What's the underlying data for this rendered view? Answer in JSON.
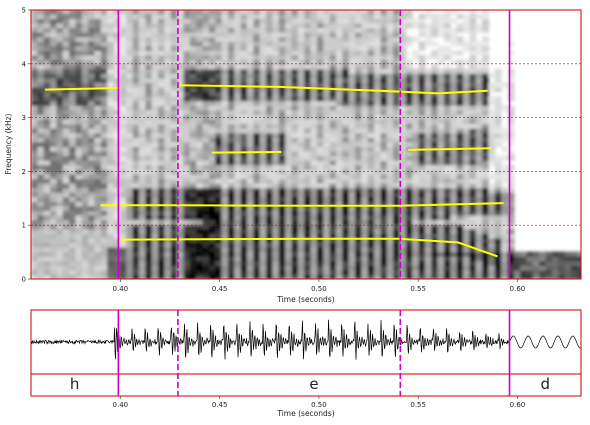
{
  "chart_data": {
    "type": "spectrogram",
    "x_range": [
      0.355,
      0.632
    ],
    "spectrogram": {
      "ylabel": "Frequency (kHz)",
      "xlabel": "Time (seconds)",
      "ylim": [
        0,
        5
      ],
      "y_ticks": [
        0,
        1,
        2,
        3,
        4,
        5
      ],
      "x_ticks": [
        0.4,
        0.45,
        0.5,
        0.55,
        0.6
      ],
      "gridlines_khz": [
        1,
        2,
        3,
        4,
        5
      ],
      "formant_tracks": [
        {
          "name": "h-F4",
          "points": [
            [
              0.362,
              3.52
            ],
            [
              0.4,
              3.55
            ]
          ]
        },
        {
          "name": "e-F4",
          "points": [
            [
              0.43,
              3.6
            ],
            [
              0.48,
              3.57
            ],
            [
              0.53,
              3.5
            ],
            [
              0.56,
              3.45
            ],
            [
              0.585,
              3.5
            ]
          ]
        },
        {
          "name": "e-F3-early",
          "points": [
            [
              0.446,
              2.35
            ],
            [
              0.481,
              2.36
            ]
          ]
        },
        {
          "name": "e-F3-late",
          "points": [
            [
              0.545,
              2.4
            ],
            [
              0.587,
              2.43
            ]
          ]
        },
        {
          "name": "F2",
          "points": [
            [
              0.39,
              1.37
            ],
            [
              0.43,
              1.37
            ],
            [
              0.5,
              1.36
            ],
            [
              0.54,
              1.36
            ],
            [
              0.56,
              1.38
            ],
            [
              0.593,
              1.41
            ]
          ]
        },
        {
          "name": "F1",
          "points": [
            [
              0.4,
              0.73
            ],
            [
              0.44,
              0.74
            ],
            [
              0.5,
              0.75
            ],
            [
              0.54,
              0.75
            ],
            [
              0.57,
              0.68
            ],
            [
              0.59,
              0.42
            ]
          ]
        }
      ]
    },
    "waveform": {
      "xlabel": "Time (seconds)",
      "x_ticks": [
        0.4,
        0.45,
        0.5,
        0.55,
        0.6
      ]
    },
    "boundaries": [
      {
        "time": 0.399,
        "style": "solid"
      },
      {
        "time": 0.429,
        "style": "dashed"
      },
      {
        "time": 0.541,
        "style": "dashed"
      },
      {
        "time": 0.596,
        "style": "solid"
      }
    ],
    "segments": [
      {
        "label": "h",
        "start": 0.355,
        "end": 0.399
      },
      {
        "label": "e",
        "start": 0.399,
        "end": 0.596
      },
      {
        "label": "d",
        "start": 0.596,
        "end": 0.632
      }
    ],
    "colors": {
      "frame": "#cc0000",
      "gridline": "#cc0000",
      "formant": "#ffff00",
      "boundary": "#cc00cc",
      "waveform": "#000000"
    }
  }
}
